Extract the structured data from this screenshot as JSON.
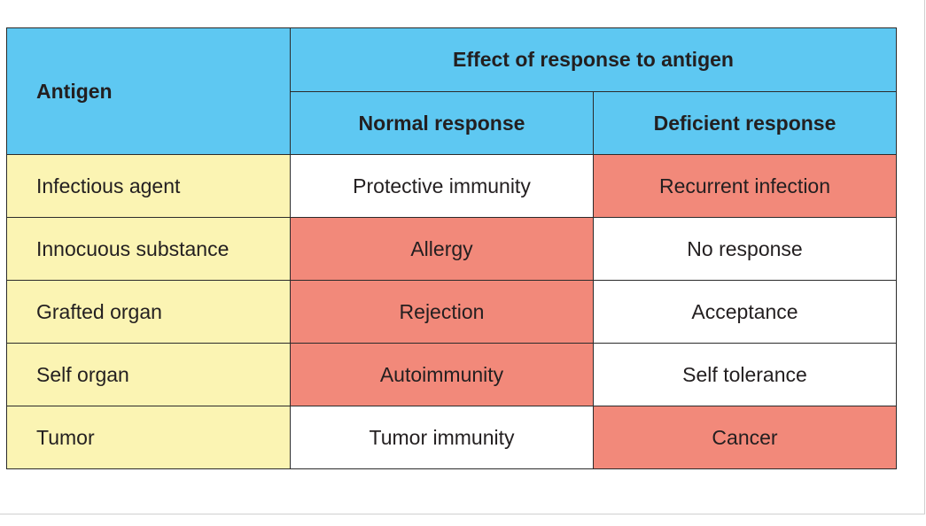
{
  "table": {
    "antigen_header": "Antigen",
    "group_header": "Effect of response to antigen",
    "sub_headers": [
      "Normal response",
      "Deficient response"
    ],
    "rows": [
      {
        "antigen": "Infectious agent",
        "normal": "Protective immunity",
        "deficient": "Recurrent infection",
        "highlight": "deficient"
      },
      {
        "antigen": "Innocuous substance",
        "normal": "Allergy",
        "deficient": "No response",
        "highlight": "normal"
      },
      {
        "antigen": "Grafted organ",
        "normal": "Rejection",
        "deficient": "Acceptance",
        "highlight": "normal"
      },
      {
        "antigen": "Self organ",
        "normal": "Autoimmunity",
        "deficient": "Self tolerance",
        "highlight": "normal"
      },
      {
        "antigen": "Tumor",
        "normal": "Tumor immunity",
        "deficient": "Cancer",
        "highlight": "deficient"
      }
    ]
  },
  "colors": {
    "header_bg": "#5ec8f2",
    "label_bg": "#fbf4b3",
    "harmful_bg": "#f2897a",
    "neutral_bg": "#ffffff",
    "border": "#2b2b2b"
  }
}
